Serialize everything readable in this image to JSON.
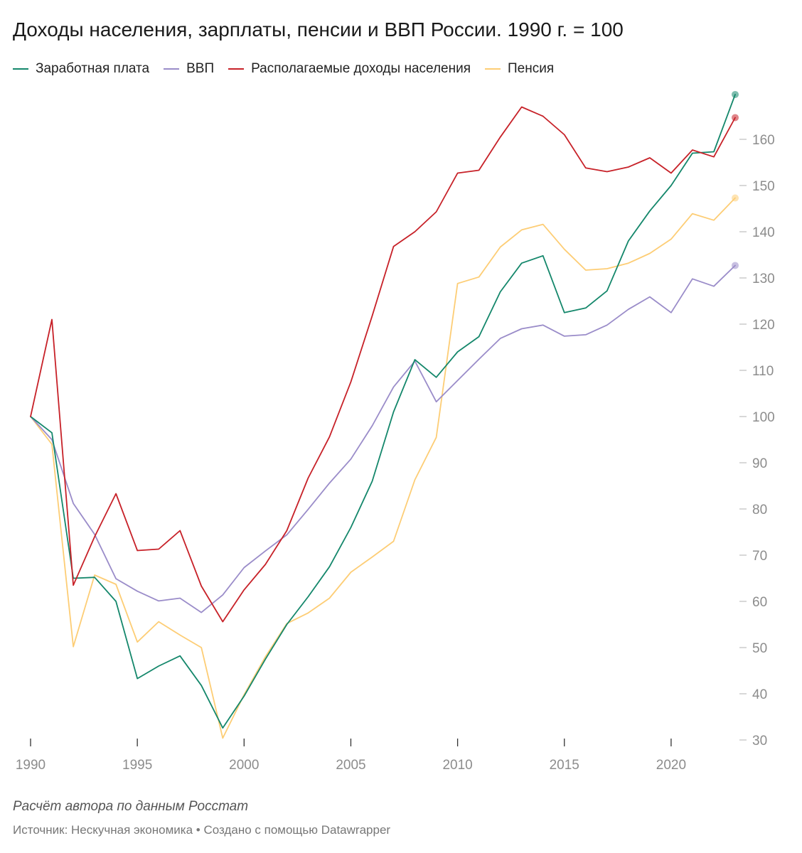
{
  "title": "Доходы населения, зарплаты, пенсии и ВВП России. 1990 г. = 100",
  "note": "Расчёт автора по данным Росстат",
  "footer": {
    "source": "Источник: Нескучная экономика",
    "separator": "•",
    "credit": "Создано с помощью Datawrapper"
  },
  "chart_data": {
    "type": "line",
    "title": "Доходы населения, зарплаты, пенсии и ВВП России. 1990 г. = 100",
    "xlabel": "",
    "ylabel": "",
    "xlim": [
      1990,
      2023
    ],
    "ylim": [
      30,
      170
    ],
    "x_ticks": [
      "1990",
      "1995",
      "2000",
      "2005",
      "2010",
      "2015",
      "2020"
    ],
    "y_ticks": [
      "30",
      "40",
      "50",
      "60",
      "70",
      "80",
      "90",
      "100",
      "110",
      "120",
      "130",
      "140",
      "150",
      "160"
    ],
    "legend_position": "top",
    "x": [
      1990,
      1991,
      1992,
      1993,
      1994,
      1995,
      1996,
      1997,
      1998,
      1999,
      2000,
      2001,
      2002,
      2003,
      2004,
      2005,
      2006,
      2007,
      2008,
      2009,
      2010,
      2011,
      2012,
      2013,
      2014,
      2015,
      2016,
      2017,
      2018,
      2019,
      2020,
      2021,
      2022,
      2023
    ],
    "series": [
      {
        "name": "Заработная плата",
        "color": "#14876b",
        "values": [
          100,
          96.5,
          65,
          65.2,
          60,
          43.3,
          46,
          48.2,
          41.8,
          32.6,
          39.5,
          47.5,
          55,
          61,
          67.5,
          76,
          86,
          101,
          112.3,
          108.5,
          114,
          117.3,
          127,
          133.2,
          134.8,
          122.5,
          123.5,
          127.2,
          138,
          144.5,
          150,
          157,
          157.3,
          169.7
        ]
      },
      {
        "name": "ВВП",
        "color": "#9a8cc9",
        "values": [
          100,
          95,
          81.2,
          74.5,
          64.9,
          62.2,
          60.1,
          60.7,
          57.6,
          61.4,
          67.3,
          70.9,
          74.4,
          79.9,
          85.6,
          90.8,
          98.0,
          106.4,
          112.0,
          103.2,
          107.8,
          112.4,
          116.9,
          119.0,
          119.8,
          117.4,
          117.7,
          119.8,
          123.2,
          125.9,
          122.5,
          129.8,
          128.2,
          132.7
        ]
      },
      {
        "name": "Располагаемые доходы населения",
        "color": "#c72128",
        "values": [
          100,
          121,
          63.5,
          74,
          83.3,
          71,
          71.3,
          75.3,
          63.3,
          55.6,
          62.5,
          68,
          75.3,
          86.7,
          95.6,
          107.5,
          121.8,
          136.8,
          140,
          144.3,
          152.7,
          153.3,
          160.5,
          167,
          165,
          161,
          153.8,
          153,
          154,
          156,
          152.7,
          157.7,
          156.2,
          164.7
        ]
      },
      {
        "name": "Пенсия",
        "color": "#fdcd75",
        "values": [
          100,
          94,
          50.2,
          65.7,
          63.7,
          51.2,
          55.6,
          52.7,
          50,
          30.4,
          39.8,
          48,
          55.2,
          57.5,
          60.7,
          66.3,
          69.6,
          73,
          86.3,
          95.5,
          128.8,
          130.2,
          136.7,
          140.4,
          141.6,
          136.2,
          131.7,
          132,
          133.2,
          135.3,
          138.4,
          143.9,
          142.5,
          147.3
        ]
      }
    ]
  }
}
